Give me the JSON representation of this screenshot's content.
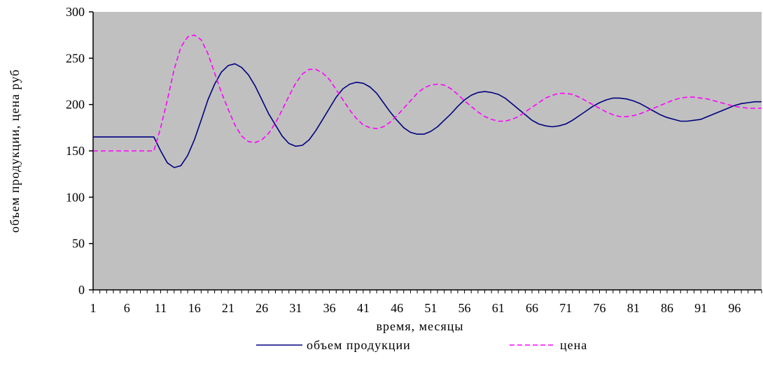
{
  "chart_data": {
    "type": "line",
    "title": "",
    "xlabel": "время, месяцы",
    "ylabel": "объем продукции, цена руб",
    "ylim": [
      0,
      300
    ],
    "yticks": [
      0,
      50,
      100,
      150,
      200,
      250,
      300
    ],
    "xlim": [
      1,
      100
    ],
    "xtick_labels": [
      "1",
      "6",
      "11",
      "16",
      "21",
      "26",
      "31",
      "36",
      "41",
      "46",
      "51",
      "56",
      "61",
      "66",
      "71",
      "76",
      "81",
      "86",
      "91",
      "96"
    ],
    "grid": false,
    "plot_background": "#c0c0c0",
    "legend_position": "bottom-center",
    "series": [
      {
        "name": "объем продукции",
        "color": "#000080",
        "style": "solid",
        "points": [
          [
            1,
            165
          ],
          [
            10,
            165
          ],
          [
            11,
            150
          ],
          [
            12,
            137
          ],
          [
            13,
            132
          ],
          [
            14,
            134
          ],
          [
            15,
            145
          ],
          [
            16,
            162
          ],
          [
            17,
            183
          ],
          [
            18,
            205
          ],
          [
            19,
            222
          ],
          [
            20,
            235
          ],
          [
            21,
            242
          ],
          [
            22,
            244
          ],
          [
            23,
            240
          ],
          [
            24,
            232
          ],
          [
            25,
            220
          ],
          [
            26,
            205
          ],
          [
            27,
            190
          ],
          [
            28,
            178
          ],
          [
            29,
            166
          ],
          [
            30,
            158
          ],
          [
            31,
            155
          ],
          [
            32,
            156
          ],
          [
            33,
            162
          ],
          [
            34,
            172
          ],
          [
            35,
            184
          ],
          [
            36,
            196
          ],
          [
            37,
            208
          ],
          [
            38,
            217
          ],
          [
            39,
            222
          ],
          [
            40,
            224
          ],
          [
            41,
            223
          ],
          [
            42,
            219
          ],
          [
            43,
            212
          ],
          [
            44,
            202
          ],
          [
            45,
            192
          ],
          [
            46,
            183
          ],
          [
            47,
            175
          ],
          [
            48,
            170
          ],
          [
            49,
            168
          ],
          [
            50,
            168
          ],
          [
            51,
            171
          ],
          [
            52,
            176
          ],
          [
            53,
            183
          ],
          [
            54,
            190
          ],
          [
            55,
            198
          ],
          [
            56,
            205
          ],
          [
            57,
            210
          ],
          [
            58,
            213
          ],
          [
            59,
            214
          ],
          [
            60,
            213
          ],
          [
            61,
            211
          ],
          [
            62,
            207
          ],
          [
            63,
            201
          ],
          [
            64,
            195
          ],
          [
            65,
            189
          ],
          [
            66,
            183
          ],
          [
            67,
            179
          ],
          [
            68,
            177
          ],
          [
            69,
            176
          ],
          [
            70,
            177
          ],
          [
            71,
            179
          ],
          [
            72,
            183
          ],
          [
            73,
            188
          ],
          [
            74,
            193
          ],
          [
            75,
            198
          ],
          [
            76,
            202
          ],
          [
            77,
            205
          ],
          [
            78,
            207
          ],
          [
            79,
            207
          ],
          [
            80,
            206
          ],
          [
            81,
            204
          ],
          [
            82,
            201
          ],
          [
            83,
            197
          ],
          [
            84,
            193
          ],
          [
            85,
            189
          ],
          [
            86,
            186
          ],
          [
            87,
            184
          ],
          [
            88,
            182
          ],
          [
            89,
            182
          ],
          [
            90,
            183
          ],
          [
            91,
            184
          ],
          [
            92,
            187
          ],
          [
            93,
            190
          ],
          [
            94,
            193
          ],
          [
            95,
            196
          ],
          [
            96,
            199
          ],
          [
            97,
            201
          ],
          [
            98,
            202
          ],
          [
            99,
            203
          ],
          [
            100,
            203
          ]
        ]
      },
      {
        "name": "цена",
        "color": "#ff00ff",
        "style": "dashed",
        "points": [
          [
            1,
            150
          ],
          [
            10,
            150
          ],
          [
            11,
            175
          ],
          [
            12,
            205
          ],
          [
            13,
            238
          ],
          [
            14,
            262
          ],
          [
            15,
            273
          ],
          [
            16,
            275
          ],
          [
            17,
            270
          ],
          [
            18,
            255
          ],
          [
            19,
            234
          ],
          [
            20,
            213
          ],
          [
            21,
            195
          ],
          [
            22,
            178
          ],
          [
            23,
            166
          ],
          [
            24,
            160
          ],
          [
            25,
            159
          ],
          [
            26,
            162
          ],
          [
            27,
            169
          ],
          [
            28,
            180
          ],
          [
            29,
            194
          ],
          [
            30,
            209
          ],
          [
            31,
            223
          ],
          [
            32,
            233
          ],
          [
            33,
            238
          ],
          [
            34,
            238
          ],
          [
            35,
            234
          ],
          [
            36,
            227
          ],
          [
            37,
            216
          ],
          [
            38,
            205
          ],
          [
            39,
            194
          ],
          [
            40,
            185
          ],
          [
            41,
            178
          ],
          [
            42,
            175
          ],
          [
            43,
            174
          ],
          [
            44,
            176
          ],
          [
            45,
            181
          ],
          [
            46,
            188
          ],
          [
            47,
            196
          ],
          [
            48,
            204
          ],
          [
            49,
            212
          ],
          [
            50,
            218
          ],
          [
            51,
            221
          ],
          [
            52,
            222
          ],
          [
            53,
            221
          ],
          [
            54,
            217
          ],
          [
            55,
            211
          ],
          [
            56,
            204
          ],
          [
            57,
            198
          ],
          [
            58,
            192
          ],
          [
            59,
            187
          ],
          [
            60,
            184
          ],
          [
            61,
            182
          ],
          [
            62,
            182
          ],
          [
            63,
            184
          ],
          [
            64,
            187
          ],
          [
            65,
            192
          ],
          [
            66,
            197
          ],
          [
            67,
            202
          ],
          [
            68,
            207
          ],
          [
            69,
            210
          ],
          [
            70,
            212
          ],
          [
            71,
            212
          ],
          [
            72,
            211
          ],
          [
            73,
            208
          ],
          [
            74,
            204
          ],
          [
            75,
            200
          ],
          [
            76,
            196
          ],
          [
            77,
            192
          ],
          [
            78,
            189
          ],
          [
            79,
            187
          ],
          [
            80,
            187
          ],
          [
            81,
            188
          ],
          [
            82,
            190
          ],
          [
            83,
            193
          ],
          [
            84,
            196
          ],
          [
            85,
            199
          ],
          [
            86,
            202
          ],
          [
            87,
            205
          ],
          [
            88,
            207
          ],
          [
            89,
            208
          ],
          [
            90,
            208
          ],
          [
            91,
            207
          ],
          [
            92,
            206
          ],
          [
            93,
            204
          ],
          [
            94,
            202
          ],
          [
            95,
            200
          ],
          [
            96,
            198
          ],
          [
            97,
            197
          ],
          [
            98,
            196
          ],
          [
            99,
            196
          ],
          [
            100,
            196
          ]
        ]
      }
    ]
  }
}
